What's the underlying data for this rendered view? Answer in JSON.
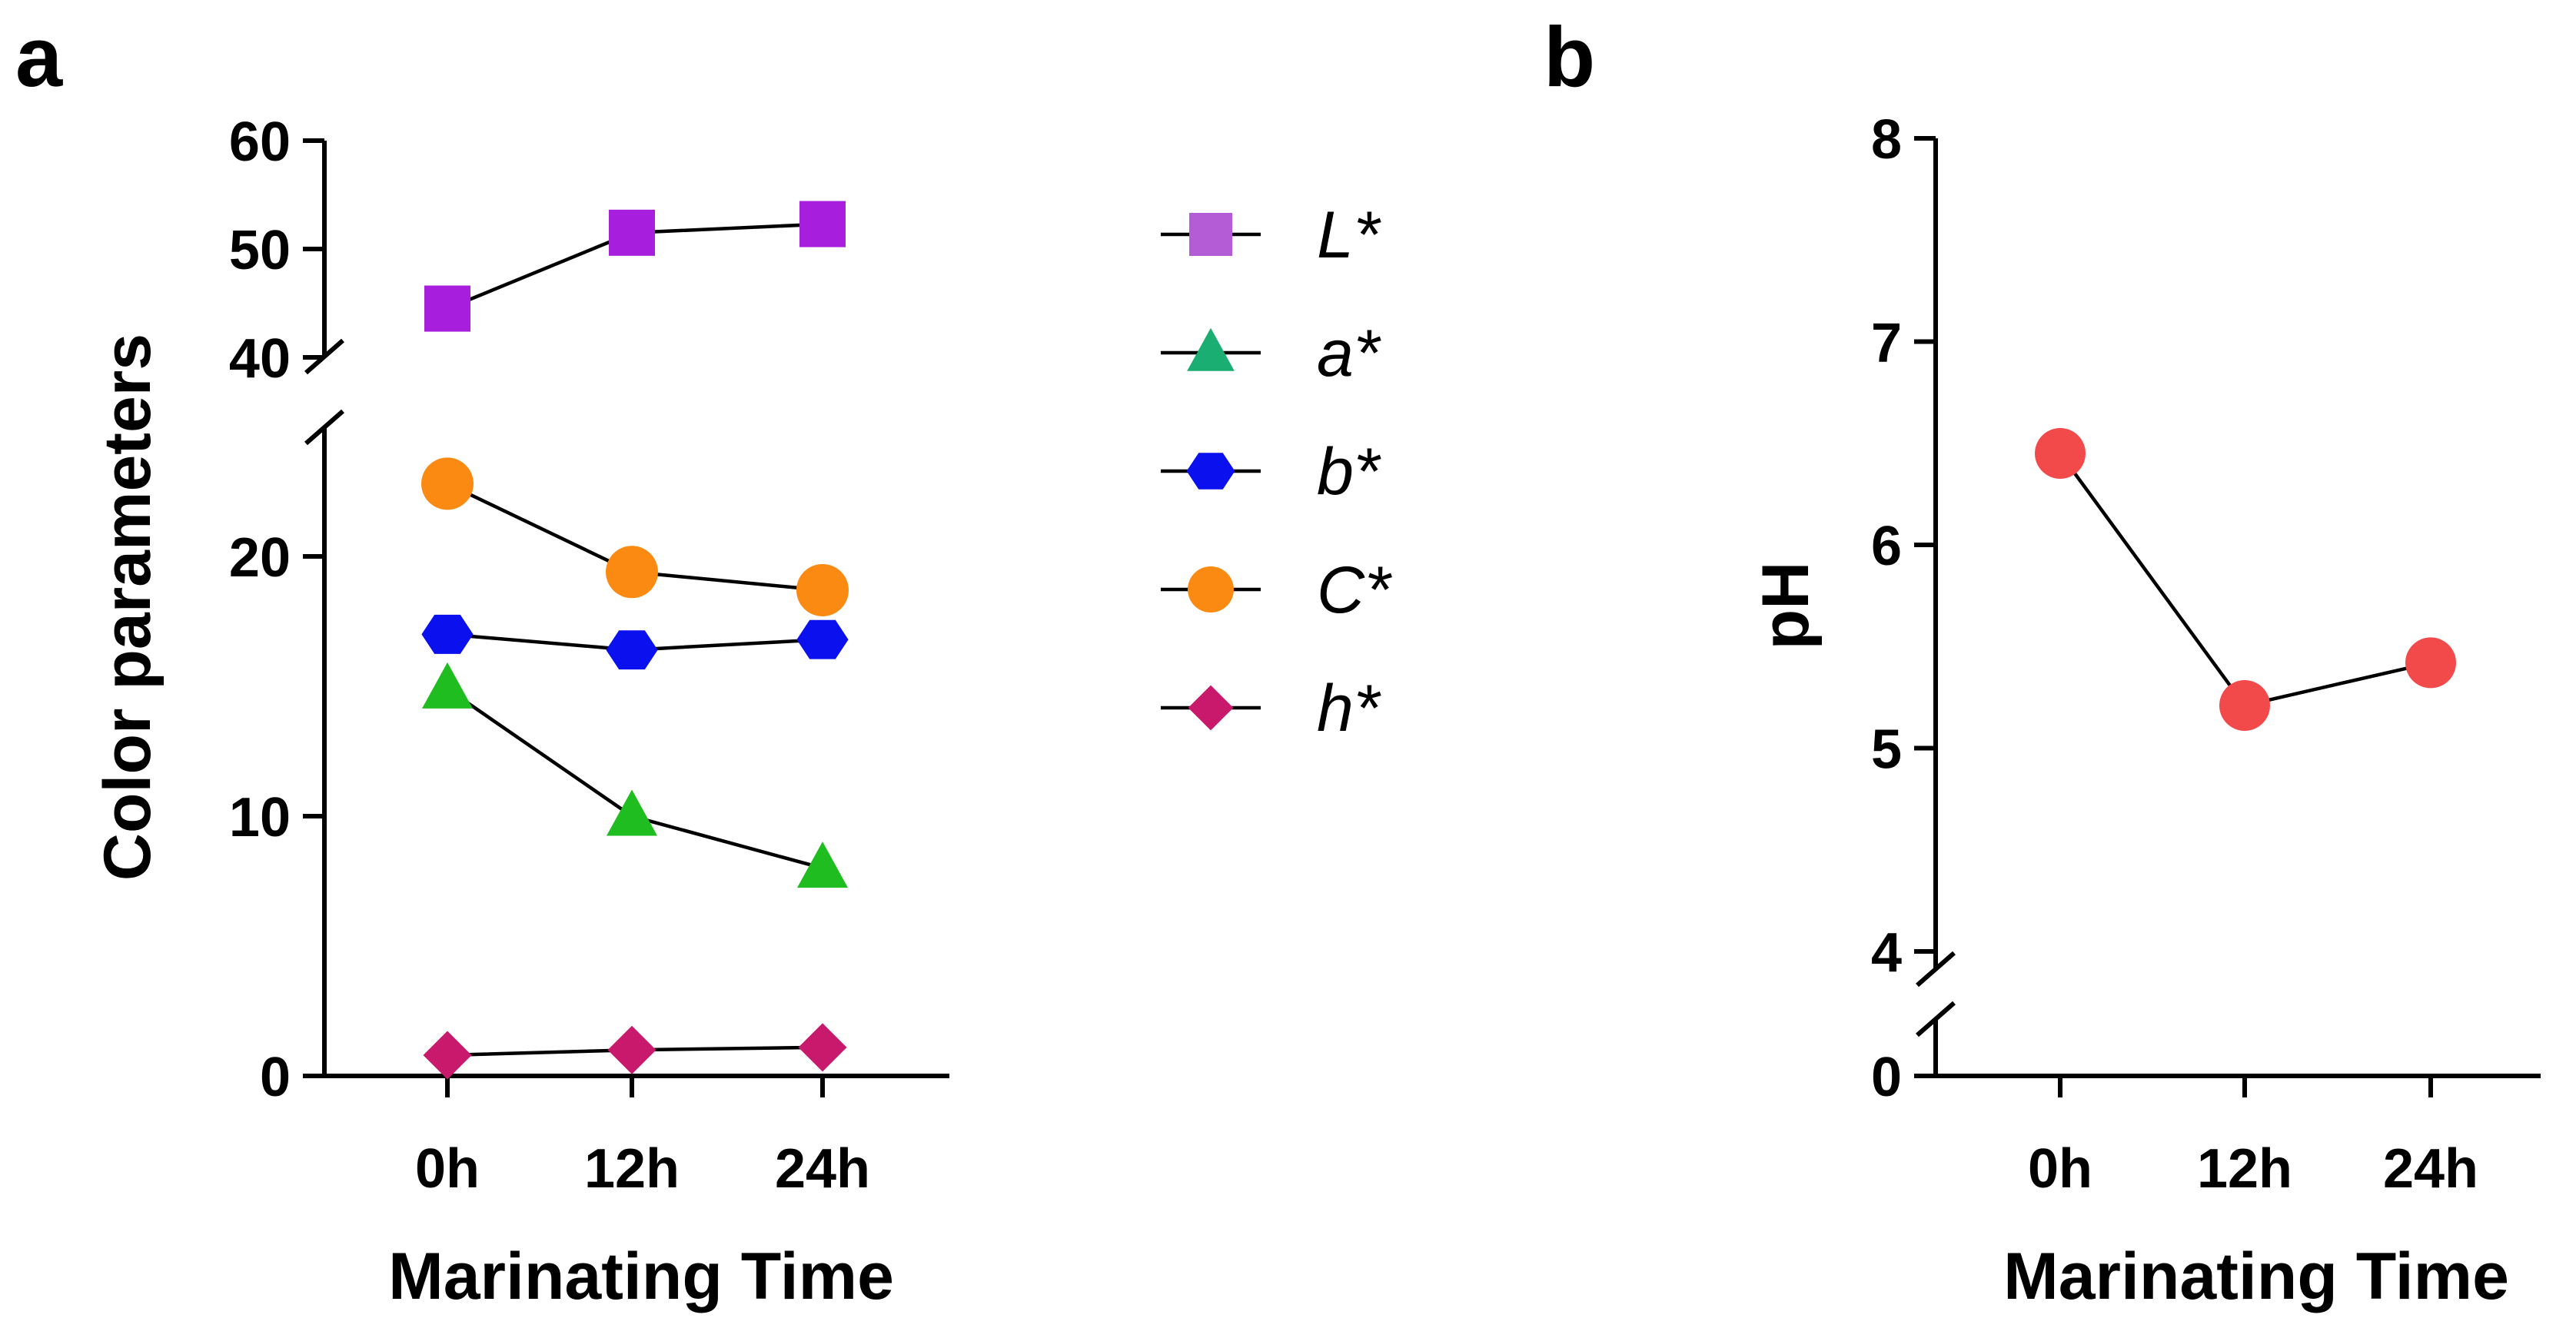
{
  "panels": {
    "a": "a",
    "b": "b"
  },
  "chart_data": [
    {
      "type": "line",
      "title": "",
      "xlabel": "Marinating Time",
      "ylabel": "Color parameters",
      "categories": [
        "0h",
        "12h",
        "24h"
      ],
      "y_axis_break": {
        "lower_range": [
          0,
          25
        ],
        "upper_range": [
          40,
          60
        ]
      },
      "yticks_lower": [
        "0",
        "10",
        "20"
      ],
      "yticks_upper": [
        "40",
        "50",
        "60"
      ],
      "series": [
        {
          "name": "L*",
          "values": [
            44.5,
            51.5,
            52.3
          ],
          "color": "#a71fdc",
          "legend_color": "#b45cd6",
          "marker": "square"
        },
        {
          "name": "a*",
          "values": [
            14.9,
            10.0,
            8.0
          ],
          "color": "#1fbd1f",
          "legend_color": "#1aae72",
          "marker": "triangle"
        },
        {
          "name": "b*",
          "values": [
            17.0,
            16.4,
            16.8
          ],
          "color": "#0a10ee",
          "legend_color": "#0a10ee",
          "marker": "hexagon"
        },
        {
          "name": "C*",
          "values": [
            22.8,
            19.4,
            18.7
          ],
          "color": "#fb8a12",
          "legend_color": "#fb8a12",
          "marker": "circle"
        },
        {
          "name": "h*",
          "values": [
            0.8,
            1.0,
            1.1
          ],
          "color": "#c8196d",
          "legend_color": "#c8196d",
          "marker": "diamond"
        }
      ],
      "legend": "right"
    },
    {
      "type": "line",
      "title": "",
      "xlabel": "Marinating Time",
      "ylabel": "pH",
      "categories": [
        "0h",
        "12h",
        "24h"
      ],
      "y_axis_break": {
        "lower_range": [
          0,
          0
        ],
        "upper_range": [
          4,
          8
        ]
      },
      "yticks_lower": [
        "0"
      ],
      "yticks_upper": [
        "4",
        "5",
        "6",
        "7",
        "8"
      ],
      "series": [
        {
          "name": "pH",
          "values": [
            6.45,
            5.21,
            5.42
          ],
          "color": "#f24a4a",
          "marker": "circle"
        }
      ]
    }
  ]
}
